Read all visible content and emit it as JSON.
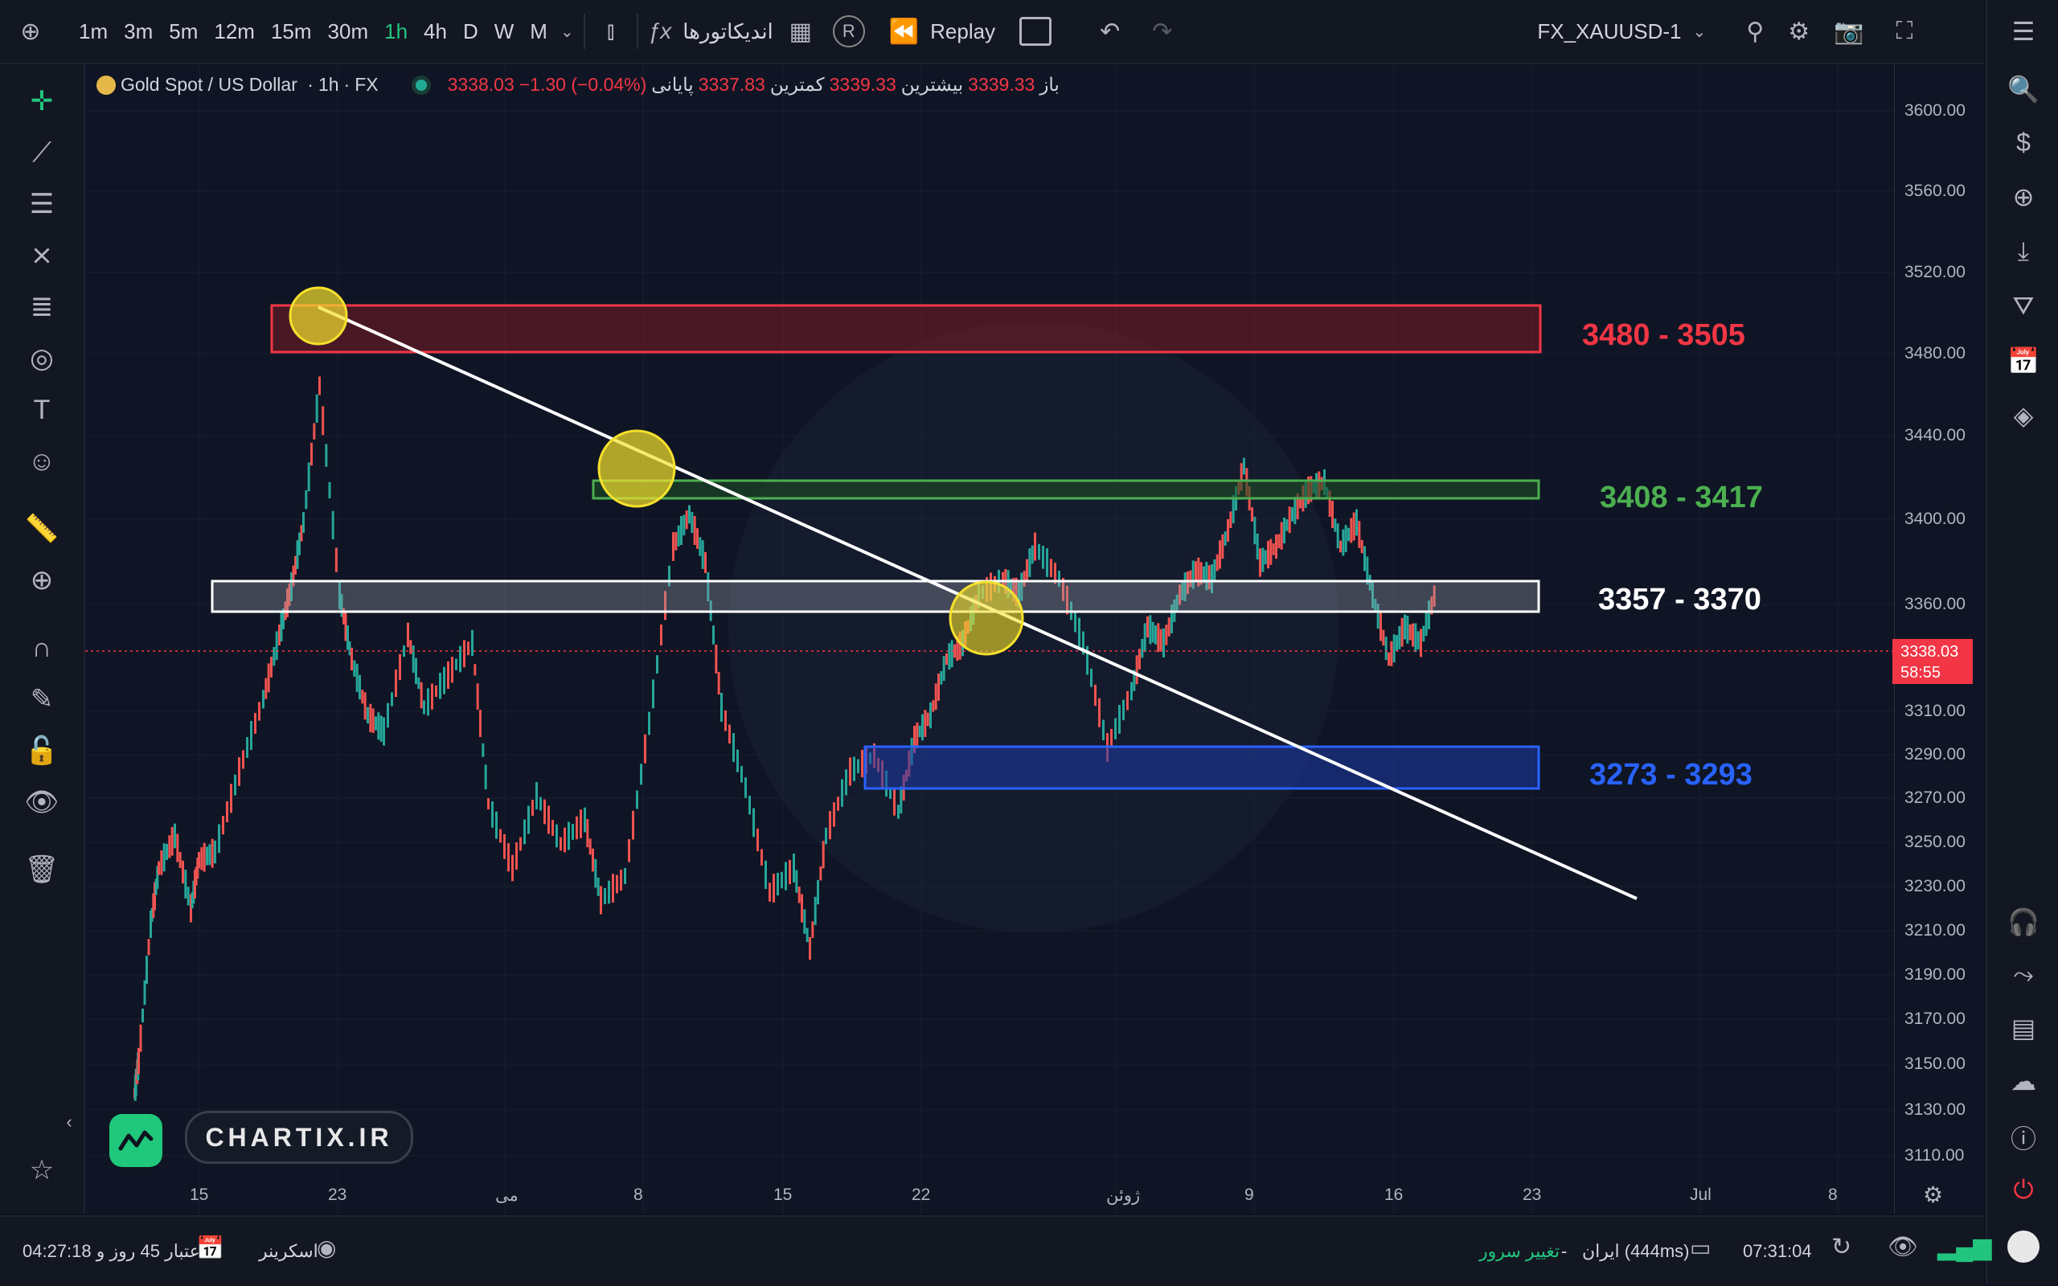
{
  "toolbar": {
    "timeframes": [
      "1m",
      "3m",
      "5m",
      "12m",
      "15m",
      "30m",
      "1h",
      "4h",
      "D",
      "W",
      "M"
    ],
    "active_timeframe": "1h",
    "indicators_label": "اندیکاتورها",
    "replay_label": "Replay",
    "symbol": "FX_XAUUSD-1"
  },
  "legend": {
    "title": "Gold Spot / US Dollar",
    "interval": "1h",
    "exchange": "FX",
    "open_label": "باز",
    "open": "3339.33",
    "high_label": "بیشترین",
    "high": "3339.33",
    "low_label": "کمترین",
    "low": "3337.83",
    "close_label": "پایانی",
    "close": "3338.03",
    "change": "−1.30 (−0.04%)"
  },
  "price_axis": [
    "3600.00",
    "3560.00",
    "3520.00",
    "3480.00",
    "3440.00",
    "3400.00",
    "3360.00",
    "3310.00",
    "3290.00",
    "3270.00",
    "3250.00",
    "3230.00",
    "3210.00",
    "3190.00",
    "3170.00",
    "3150.00",
    "3130.00",
    "3110.00"
  ],
  "current_price": {
    "value": "3338.03",
    "countdown": "58:55"
  },
  "time_axis": [
    "15",
    "23",
    "می",
    "8",
    "15",
    "22",
    "ژوئن",
    "9",
    "16",
    "23",
    "Jul",
    "8"
  ],
  "zones": [
    {
      "label": "3480 - 3505",
      "color": "#f23645"
    },
    {
      "label": "3408 - 3417",
      "color": "#4caf50"
    },
    {
      "label": "3357 - 3370",
      "color": "#ffffff"
    },
    {
      "label": "3273 - 3293",
      "color": "#2962ff"
    }
  ],
  "brand": "CHARTIX.IR",
  "status": {
    "credit": "اعتبار 45 روز و 04:27:18",
    "screener": "اسکرینر",
    "change_server": "تغییر سرور",
    "server": "ایران (444ms)",
    "clock": "07:31:04"
  }
}
